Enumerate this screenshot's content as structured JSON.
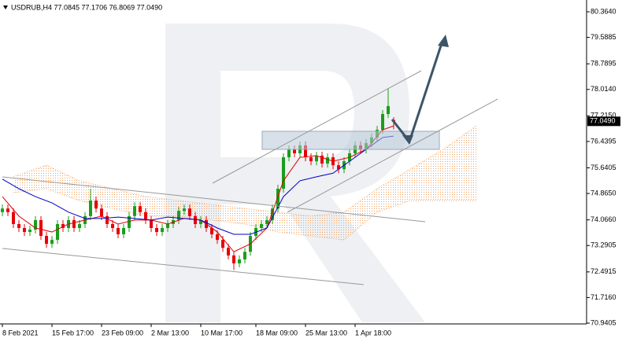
{
  "chart_data": {
    "type": "candlestick",
    "header": "USDRUB,H4  77.0845 77.1706 76.8069 77.0490",
    "up_color": "#1a9e1a",
    "down_color": "#e8000b",
    "open": [
      74.3,
      74.41,
      74.3,
      73.94,
      73.82,
      73.7,
      73.77,
      74.06,
      73.58,
      73.34,
      73.46,
      73.94,
      73.82,
      74.06,
      73.82,
      73.94,
      74.18,
      74.65,
      74.41,
      74.18,
      73.94,
      73.82,
      73.63,
      73.82,
      74.18,
      74.48,
      74.3,
      74.06,
      73.82,
      73.7,
      73.82,
      73.94,
      74.06,
      74.34,
      74.41,
      74.18,
      73.94,
      74.06,
      73.82,
      73.63,
      73.46,
      73.22,
      72.99,
      72.75,
      72.87,
      73.1,
      73.58,
      73.82,
      73.94,
      74.06,
      74.41,
      75.01,
      75.96,
      76.2,
      76.08,
      76.32,
      75.96,
      75.84,
      76.01,
      75.77,
      75.96,
      75.72,
      75.6,
      75.84,
      76.08,
      76.32,
      76.2,
      76.39,
      76.56,
      76.79,
      77.27,
      77.0845
    ],
    "high": [
      74.53,
      74.53,
      74.42,
      74.06,
      73.94,
      73.89,
      74.18,
      74.18,
      73.7,
      73.58,
      74.06,
      74.06,
      74.18,
      74.18,
      74.06,
      74.3,
      75.01,
      74.77,
      74.53,
      74.3,
      74.06,
      73.94,
      73.94,
      74.3,
      74.6,
      74.6,
      74.42,
      74.18,
      73.94,
      73.94,
      74.06,
      74.18,
      74.46,
      74.53,
      74.53,
      74.3,
      74.18,
      74.18,
      73.94,
      73.75,
      73.58,
      73.34,
      73.11,
      72.99,
      73.22,
      73.7,
      73.94,
      74.06,
      74.18,
      74.53,
      75.13,
      76.08,
      76.32,
      76.32,
      76.44,
      76.44,
      76.08,
      76.13,
      76.13,
      76.08,
      76.08,
      75.84,
      75.96,
      76.2,
      76.44,
      76.44,
      76.51,
      76.68,
      76.91,
      77.39,
      78.05,
      77.1706
    ],
    "low": [
      74.18,
      74.18,
      73.82,
      73.7,
      73.58,
      73.58,
      73.65,
      73.46,
      73.22,
      73.22,
      73.34,
      73.7,
      73.7,
      73.7,
      73.7,
      73.82,
      74.06,
      74.29,
      74.06,
      73.82,
      73.7,
      73.51,
      73.51,
      73.7,
      74.06,
      74.18,
      73.94,
      73.7,
      73.58,
      73.58,
      73.7,
      73.82,
      73.94,
      74.22,
      74.06,
      73.82,
      73.82,
      73.7,
      73.51,
      73.34,
      73.1,
      72.87,
      72.55,
      72.63,
      72.75,
      72.98,
      73.46,
      73.7,
      73.82,
      73.94,
      74.29,
      74.89,
      75.84,
      75.96,
      75.96,
      75.84,
      75.72,
      75.72,
      75.65,
      75.65,
      75.6,
      75.48,
      75.48,
      75.72,
      75.96,
      76.08,
      76.08,
      76.27,
      76.44,
      76.67,
      77.15,
      76.8069
    ],
    "close": [
      74.41,
      74.3,
      73.94,
      73.82,
      73.7,
      73.77,
      74.06,
      73.58,
      73.34,
      73.46,
      73.94,
      73.82,
      74.06,
      73.82,
      73.94,
      74.18,
      74.65,
      74.41,
      74.18,
      73.94,
      73.82,
      73.63,
      73.82,
      74.18,
      74.48,
      74.3,
      74.06,
      73.82,
      73.7,
      73.82,
      73.94,
      74.06,
      74.34,
      74.41,
      74.18,
      73.94,
      74.06,
      73.82,
      73.63,
      73.46,
      73.22,
      72.99,
      72.75,
      72.87,
      73.1,
      73.58,
      73.82,
      73.94,
      74.06,
      74.41,
      75.01,
      75.96,
      76.2,
      76.08,
      76.32,
      75.96,
      75.84,
      76.01,
      75.77,
      75.96,
      75.72,
      75.6,
      75.84,
      76.08,
      76.32,
      76.2,
      76.39,
      76.56,
      76.79,
      77.27,
      77.51,
      77.049
    ],
    "series": [
      {
        "color": "#e00000",
        "x": [
          0,
          3,
          6,
          9,
          12,
          15,
          18,
          21,
          24,
          27,
          30,
          33,
          36,
          39,
          42,
          45,
          48,
          51,
          54,
          57,
          60,
          63,
          66,
          69,
          71
        ],
        "values": [
          74.77,
          74.18,
          73.82,
          73.7,
          73.94,
          74.06,
          74.18,
          73.94,
          74.06,
          74.06,
          73.94,
          74.11,
          74.06,
          73.7,
          73.1,
          73.34,
          73.82,
          75.25,
          75.96,
          76.01,
          75.84,
          75.96,
          76.2,
          76.79,
          76.91
        ]
      },
      {
        "color": "#0000cc",
        "x": [
          0,
          3,
          6,
          9,
          12,
          15,
          18,
          21,
          24,
          27,
          30,
          33,
          36,
          39,
          42,
          45,
          48,
          51,
          54,
          57,
          60,
          63,
          66,
          69,
          71
        ],
        "values": [
          75.3,
          75.01,
          74.77,
          74.58,
          74.3,
          74.11,
          74.11,
          74.15,
          74.11,
          74.06,
          74.15,
          74.11,
          74.06,
          73.82,
          73.63,
          73.63,
          73.82,
          74.77,
          75.25,
          75.37,
          75.48,
          75.84,
          76.2,
          76.56,
          76.6
        ]
      }
    ],
    "cloud": {
      "color": "#f0a060",
      "x": [
        2,
        8,
        14,
        20,
        26,
        32,
        38,
        44,
        50,
        56,
        62,
        68,
        74,
        80,
        86
      ],
      "span_a": [
        74.89,
        75.01,
        74.65,
        74.41,
        74.18,
        74.18,
        74.06,
        73.94,
        73.7,
        73.58,
        73.46,
        74.3,
        74.65,
        74.65,
        74.65
      ],
      "span_b": [
        75.37,
        75.72,
        75.25,
        75.01,
        74.77,
        74.65,
        74.53,
        74.41,
        74.3,
        74.18,
        74.3,
        75.01,
        75.6,
        76.2,
        76.91
      ]
    },
    "last_price": {
      "value": 77.049,
      "label": "77.0490"
    },
    "xlim": [
      -0.43,
      106
    ],
    "xticks": [
      {
        "value": 0,
        "label": "8 Feb 2021"
      },
      {
        "value": 9,
        "label": "15 Feb 17:00"
      },
      {
        "value": 18,
        "label": "23 Feb 09:00"
      },
      {
        "value": 27,
        "label": "2 Mar 13:00"
      },
      {
        "value": 36,
        "label": "10 Mar 17:00"
      },
      {
        "value": 46,
        "label": "18 Mar 09:00"
      },
      {
        "value": 55,
        "label": "25 Mar 13:00"
      },
      {
        "value": 64,
        "label": "1 Apr 18:00"
      }
    ],
    "ylim": [
      70.917,
      80.721
    ],
    "yticks": [
      {
        "value": 80.364,
        "label": "80.3640"
      },
      79.5885,
      78.7895,
      {
        "value": 78.014,
        "label": "78.0140"
      },
      {
        "value": 77.215,
        "label": "77.2150"
      },
      76.4395,
      75.6405,
      {
        "value": 74.865,
        "label": "74.8650"
      },
      {
        "value": 74.066,
        "label": "74.0660"
      },
      73.2905,
      72.4915,
      {
        "value": 71.716,
        "label": "71.7160"
      },
      70.9405
    ]
  }
}
